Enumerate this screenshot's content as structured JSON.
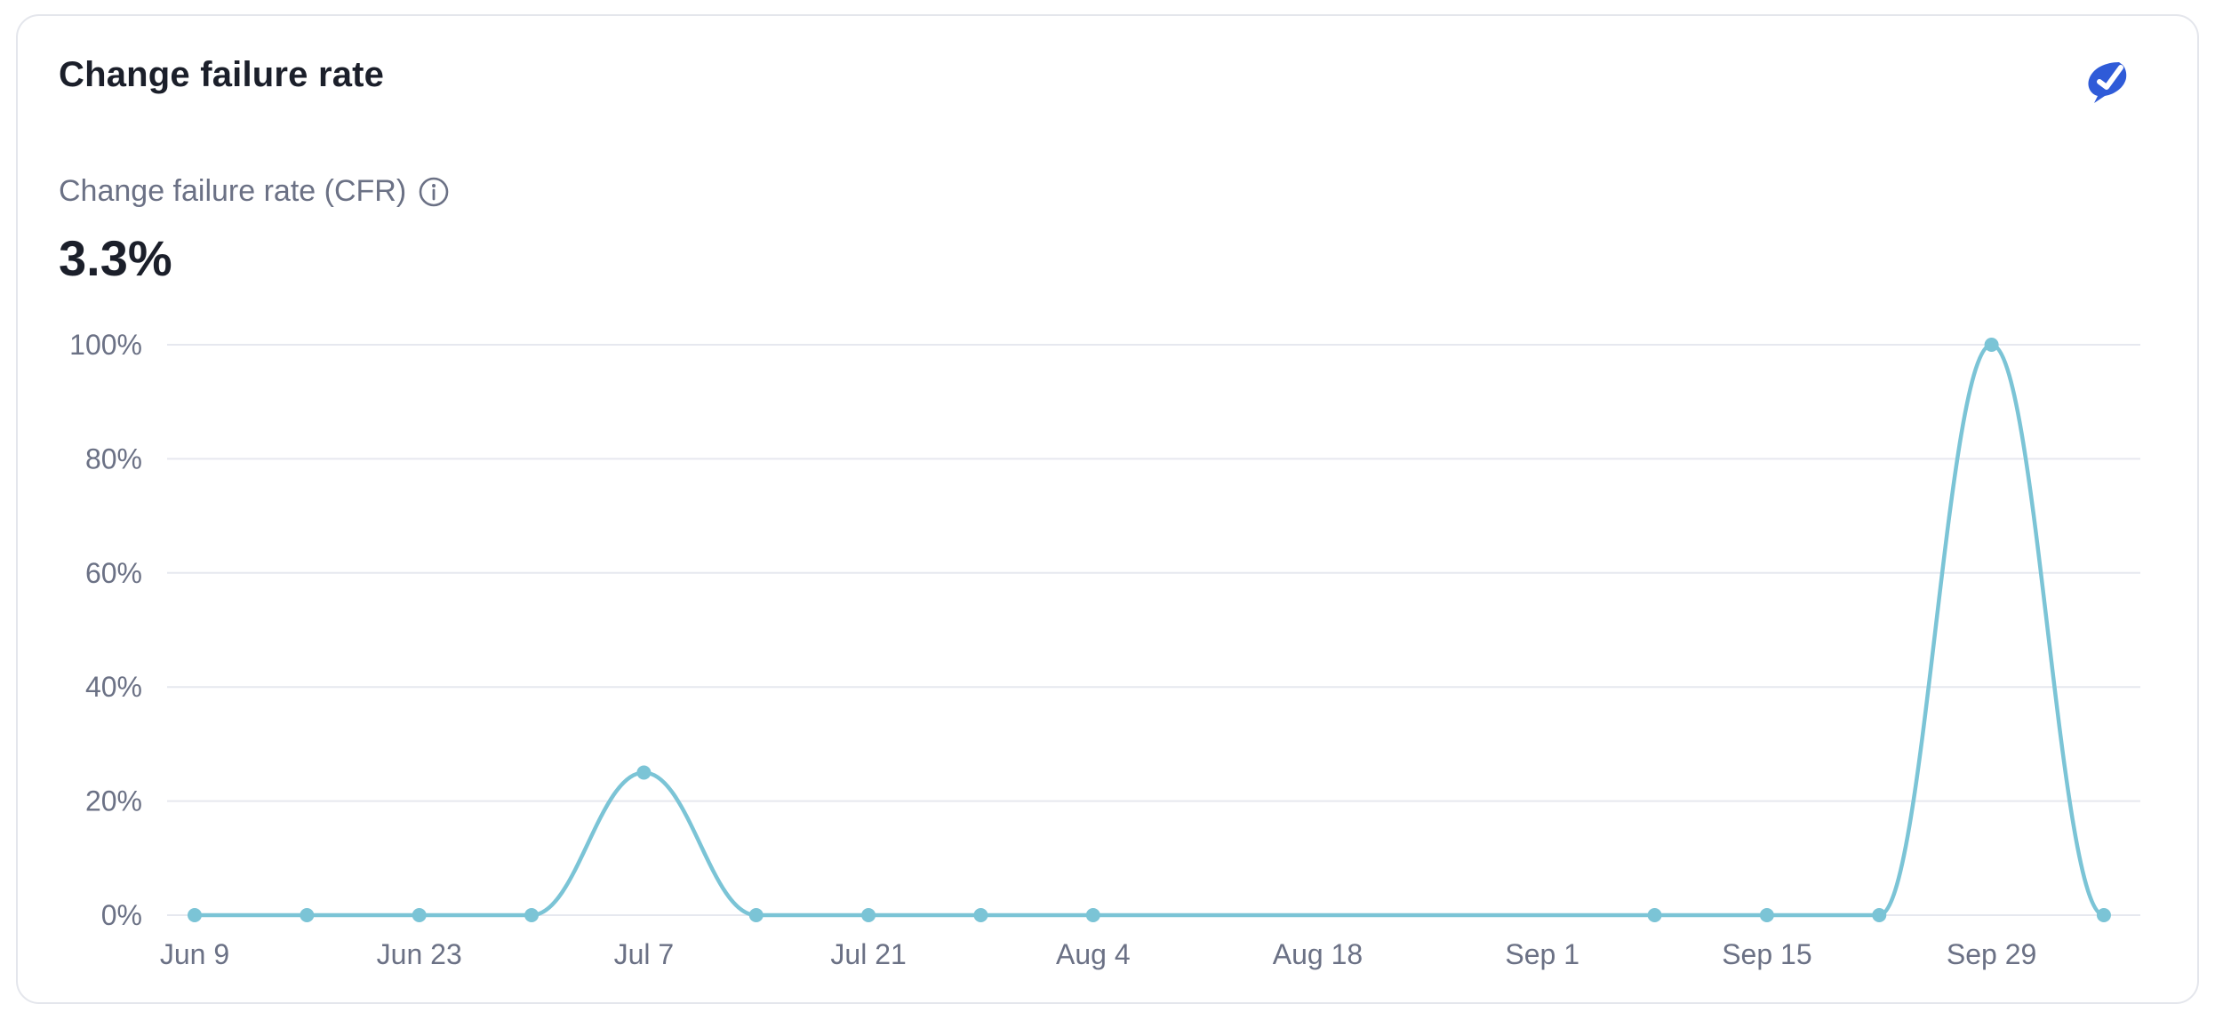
{
  "card": {
    "title": "Change failure rate",
    "metric_label": "Change failure rate (CFR)",
    "metric_value": "3.3%"
  },
  "icons": {
    "brand": "brand-logo-icon",
    "info": "info-icon"
  },
  "colors": {
    "series": "#7bc4d6",
    "brand": "#2f5bd8",
    "grid": "#e6e8ef",
    "label": "#6b7185"
  },
  "chart_data": {
    "type": "line",
    "title": "",
    "xlabel": "",
    "ylabel": "",
    "ylim": [
      0,
      100
    ],
    "y_ticks": [
      "0%",
      "20%",
      "40%",
      "60%",
      "80%",
      "100%"
    ],
    "x_ticks": [
      "Jun 9",
      "Jun 23",
      "Jul 7",
      "Jul 21",
      "Aug 4",
      "Aug 18",
      "Sep 1",
      "Sep 15",
      "Sep 29"
    ],
    "grid": true,
    "legend": "none",
    "series": [
      {
        "x": [
          "Jun 9",
          "Jun 16",
          "Jun 23",
          "Jun 30",
          "Jul 7",
          "Jul 14",
          "Jul 21",
          "Jul 28",
          "Aug 4",
          "Sep 8",
          "Sep 15",
          "Sep 22",
          "Sep 29",
          "Oct 6"
        ],
        "values": [
          0,
          0,
          0,
          0,
          25,
          0,
          0,
          0,
          0,
          0,
          0,
          0,
          100,
          0
        ]
      }
    ]
  }
}
